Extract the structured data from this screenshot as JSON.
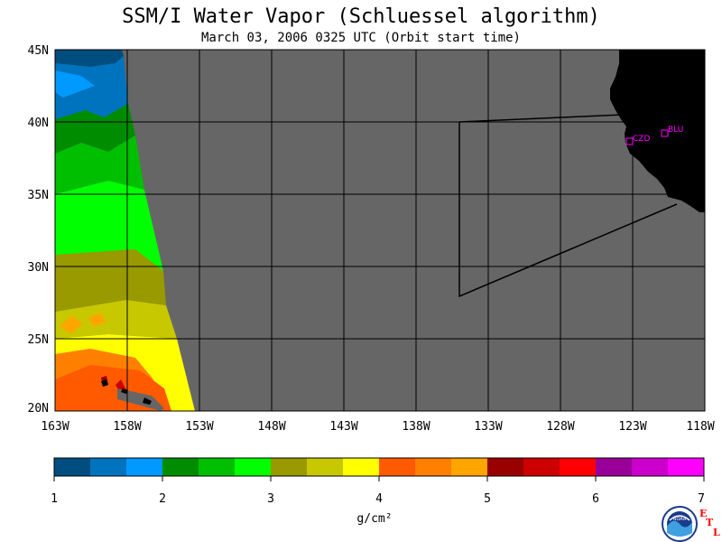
{
  "title": "SSM/I Water Vapor (Schluessel algorithm)",
  "subtitle": "March 03, 2006  0325 UTC  (Orbit start time)",
  "lat_labels": [
    "45N",
    "40N",
    "35N",
    "30N",
    "25N",
    "20N"
  ],
  "lon_labels": [
    "163W",
    "158W",
    "153W",
    "148W",
    "143W",
    "138W",
    "133W",
    "128W",
    "123W",
    "118W"
  ],
  "stations": [
    {
      "label": "CZD",
      "lon": -123.0,
      "lat": 38.6
    },
    {
      "label": "BLU",
      "lon": -120.8,
      "lat": 39.3
    }
  ],
  "colorbar": {
    "unit": "g/cm²",
    "tick_labels": [
      "1",
      "2",
      "3",
      "4",
      "5",
      "6",
      "7"
    ],
    "colors": [
      "#004d80",
      "#0073bf",
      "#0099ff",
      "#008c00",
      "#00bf00",
      "#00ff00",
      "#999900",
      "#c8c800",
      "#ffff00",
      "#ff5a00",
      "#ff8000",
      "#ffa500",
      "#990000",
      "#cc0000",
      "#ff0000",
      "#990099",
      "#cc00cc",
      "#ff00ff"
    ]
  },
  "logos": {
    "noaa": "NOAA",
    "etl": "ETL"
  },
  "colors": {
    "no_data": "#666666",
    "land": "#000000",
    "station": "#ff00ff"
  }
}
